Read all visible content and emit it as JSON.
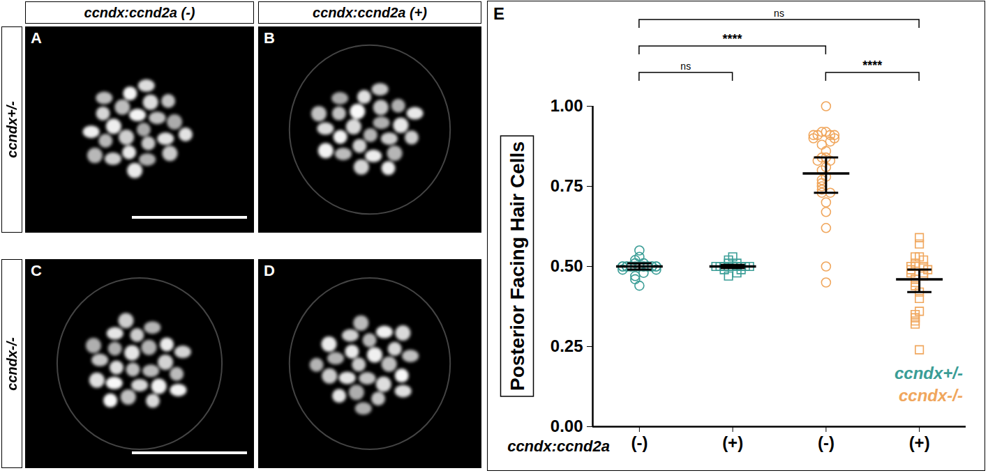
{
  "figure": {
    "column_heads": [
      "ccndx:ccnd2a (-)",
      "ccndx:ccnd2a (+)"
    ],
    "row_heads": [
      "ccndx+/-",
      "ccndx-/-"
    ],
    "image_panels": [
      "A",
      "B",
      "C",
      "D"
    ],
    "chart_panel": "E"
  },
  "chart_data": {
    "type": "scatter",
    "ylabel": "Posterior Facing Hair Cells",
    "xlabel": "ccndx:ccnd2a",
    "categories": [
      "(-)",
      "(+)",
      "(-)",
      "(+)"
    ],
    "marker": [
      "circle",
      "square",
      "circle",
      "square"
    ],
    "ylim": [
      0,
      1
    ],
    "yticks": [
      {
        "value": 0,
        "label": "0.00"
      },
      {
        "value": 0.25,
        "label": "0.25"
      },
      {
        "value": 0.5,
        "label": "0.50"
      },
      {
        "value": 0.75,
        "label": "0.75"
      },
      {
        "value": 1,
        "label": "1.00"
      }
    ],
    "legend": "bottom-right",
    "series": [
      {
        "name": "ccndx+/-",
        "color": "#3a9d96",
        "values": [
          [
            0.55,
            0.53,
            0.52,
            0.51,
            0.51,
            0.5,
            0.5,
            0.5,
            0.5,
            0.5,
            0.5,
            0.5,
            0.5,
            0.5,
            0.5,
            0.5,
            0.5,
            0.5,
            0.5,
            0.5,
            0.5,
            0.49,
            0.49,
            0.48,
            0.47,
            0.46,
            0.44
          ],
          [
            0.53,
            0.52,
            0.51,
            0.51,
            0.5,
            0.5,
            0.5,
            0.5,
            0.5,
            0.5,
            0.5,
            0.5,
            0.5,
            0.5,
            0.5,
            0.5,
            0.49,
            0.49,
            0.48,
            0.47
          ],
          null,
          null
        ],
        "mean": [
          0.5,
          0.5,
          null,
          null
        ],
        "error_low": [
          0.49,
          0.495,
          null,
          null
        ],
        "error_high": [
          0.51,
          0.505,
          null,
          null
        ]
      },
      {
        "name": "ccndx-/-",
        "color": "#f0a65c",
        "values": [
          null,
          null,
          [
            1.0,
            0.92,
            0.92,
            0.91,
            0.91,
            0.91,
            0.91,
            0.9,
            0.9,
            0.89,
            0.88,
            0.86,
            0.84,
            0.84,
            0.83,
            0.83,
            0.81,
            0.8,
            0.78,
            0.77,
            0.76,
            0.75,
            0.74,
            0.73,
            0.73,
            0.7,
            0.67,
            0.62,
            0.5,
            0.45
          ],
          [
            0.59,
            0.57,
            0.53,
            0.53,
            0.52,
            0.51,
            0.5,
            0.5,
            0.5,
            0.49,
            0.49,
            0.48,
            0.48,
            0.47,
            0.46,
            0.45,
            0.44,
            0.42,
            0.4,
            0.36,
            0.35,
            0.34,
            0.33,
            0.32,
            0.24
          ]
        ],
        "mean": [
          null,
          null,
          0.79,
          0.46
        ],
        "error_low": [
          null,
          null,
          0.73,
          0.42
        ],
        "error_high": [
          null,
          null,
          0.84,
          0.49
        ]
      }
    ],
    "annotations": [
      {
        "from": 0,
        "to": 3,
        "label": "ns"
      },
      {
        "from": 0,
        "to": 2,
        "label": "****"
      },
      {
        "from": 0,
        "to": 1,
        "label": "ns"
      },
      {
        "from": 2,
        "to": 3,
        "label": "****"
      }
    ]
  }
}
